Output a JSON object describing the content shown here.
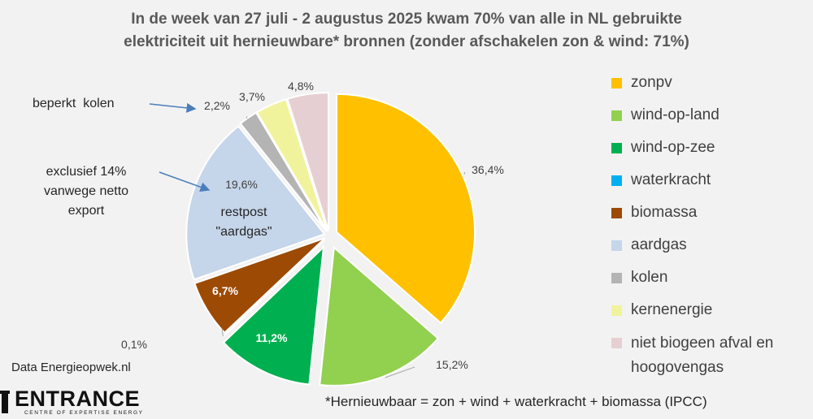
{
  "title": {
    "line1": "In de week van 27 juli - 2 augustus 2025 kwam 70% van alle in NL gebruikte",
    "line2": "elektriciteit uit hernieuwbare* bronnen  (zonder afschakelen zon & wind: 71%)"
  },
  "chart_data": {
    "type": "pie",
    "title": "In de week van 27 juli - 2 augustus 2025 kwam 70% van alle in NL gebruikte elektriciteit uit hernieuwbare* bronnen (zonder afschakelen zon & wind: 71%)",
    "slices": [
      {
        "name": "zonpv",
        "value": 36.4,
        "label": "36,4%",
        "color": "#ffc000"
      },
      {
        "name": "wind-op-land",
        "value": 15.2,
        "label": "15,2%",
        "color": "#92d050"
      },
      {
        "name": "wind-op-zee",
        "value": 11.2,
        "label": "11,2%",
        "color": "#00b050"
      },
      {
        "name": "waterkracht",
        "value": 0.1,
        "label": "0,1%",
        "color": "#00b0f0"
      },
      {
        "name": "biomassa",
        "value": 6.7,
        "label": "6,7%",
        "color": "#9c4a04"
      },
      {
        "name": "aardgas",
        "value": 19.6,
        "label": "19,6%",
        "color": "#c5d5ea"
      },
      {
        "name": "kolen",
        "value": 2.2,
        "label": "2,2%",
        "color": "#b4b4b4"
      },
      {
        "name": "kernenergie",
        "value": 3.7,
        "label": "3,7%",
        "color": "#f0f39b"
      },
      {
        "name": "niet biogeen afval en hoogovengas",
        "value": 4.8,
        "label": "4,8%",
        "color": "#e6cfd2"
      }
    ],
    "legend_position": "right"
  },
  "legend": [
    {
      "label": "zonpv",
      "color": "#ffc000"
    },
    {
      "label": "wind-op-land",
      "color": "#92d050"
    },
    {
      "label": "wind-op-zee",
      "color": "#00b050"
    },
    {
      "label": "waterkracht",
      "color": "#00b0f0"
    },
    {
      "label": "biomassa",
      "color": "#9c4a04"
    },
    {
      "label": "aardgas",
      "color": "#c5d5ea"
    },
    {
      "label": "kolen",
      "color": "#b4b4b4"
    },
    {
      "label": "kernenergie",
      "color": "#f0f39b"
    },
    {
      "label": "niet biogeen afval en hoogovengas",
      "color": "#e6cfd2"
    }
  ],
  "annotations": {
    "kolen_note": "beperkt  kolen",
    "gas_note_1": "exclusief 14%",
    "gas_note_2": "vanwege netto",
    "gas_note_3": "export",
    "gas_inner_1": "restpost",
    "gas_inner_2": "\"aardgas\""
  },
  "source": "Data Energieopwek.nl",
  "footer_note": "*Hernieuwbaar = zon + wind + waterkracht + biomassa (IPCC)",
  "logo": {
    "word": "ENTRANCE",
    "subtitle": "CENTRE OF EXPERTISE ENERGY"
  }
}
